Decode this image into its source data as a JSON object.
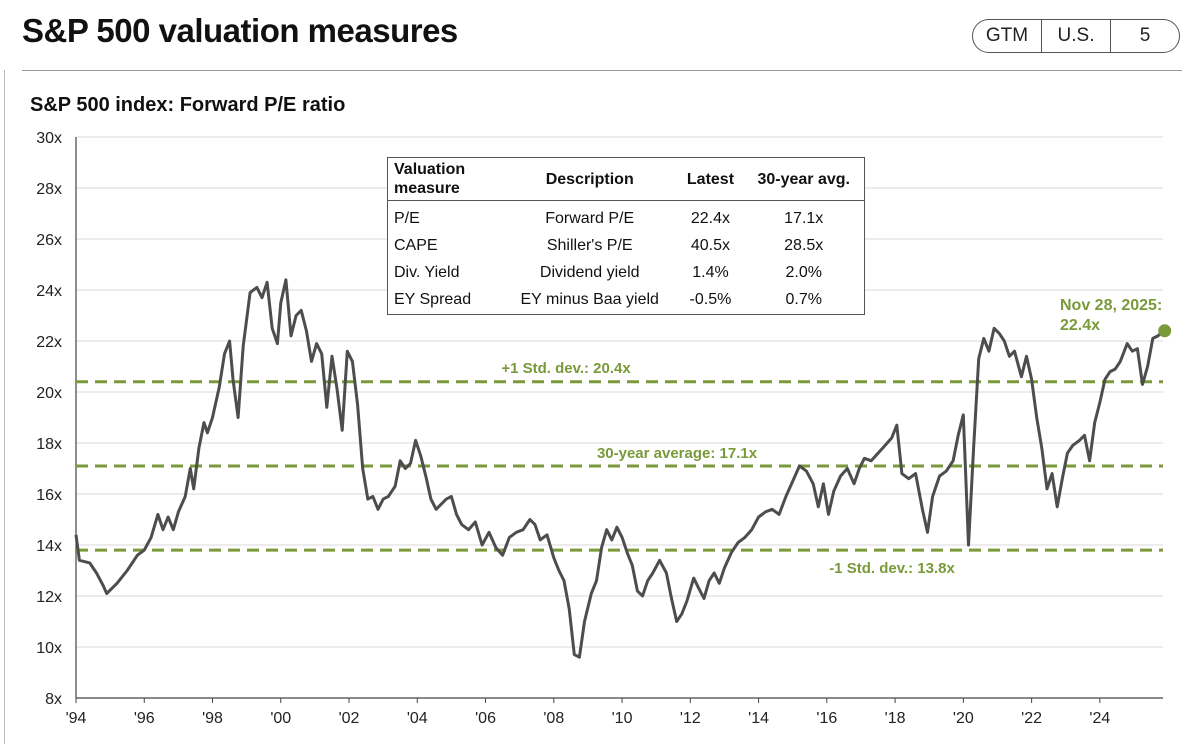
{
  "header": {
    "title": "S&P 500 valuation measures",
    "badge": [
      "GTM",
      "U.S.",
      "5"
    ]
  },
  "colors": {
    "line": "#4d4d4d",
    "accent": "#7a9a3a",
    "grid": "#d9d9d9"
  },
  "chart_data": {
    "type": "line",
    "title": "S&P 500 index: Forward P/E ratio",
    "y_ticks": [
      "8x",
      "10x",
      "12x",
      "14x",
      "16x",
      "18x",
      "20x",
      "22x",
      "24x",
      "26x",
      "28x",
      "30x"
    ],
    "x_ticks": [
      "'94",
      "'96",
      "'98",
      "'00",
      "'02",
      "'04",
      "'06",
      "'08",
      "'10",
      "'12",
      "'14",
      "'16",
      "'18",
      "'20",
      "'22",
      "'24"
    ],
    "xlim": [
      1994,
      2025.85
    ],
    "ylim": [
      8,
      30
    ],
    "reference_lines": [
      {
        "label": "+1 Std. dev.: 20.4x",
        "value": 20.4
      },
      {
        "label": "30-year average: 17.1x",
        "value": 17.1
      },
      {
        "label": "-1 Std. dev.: 13.8x",
        "value": 13.8
      }
    ],
    "latest_annotation": {
      "line1": "Nov 28, 2025:",
      "line2": "22.4x",
      "x": 2025.9,
      "y": 22.4
    },
    "series": [
      {
        "name": "Forward P/E",
        "points": [
          [
            1994.0,
            14.4
          ],
          [
            1994.1,
            13.4
          ],
          [
            1994.4,
            13.3
          ],
          [
            1994.6,
            12.9
          ],
          [
            1994.8,
            12.4
          ],
          [
            1994.9,
            12.1
          ],
          [
            1995.2,
            12.5
          ],
          [
            1995.5,
            13.0
          ],
          [
            1995.8,
            13.6
          ],
          [
            1996.0,
            13.8
          ],
          [
            1996.2,
            14.3
          ],
          [
            1996.4,
            15.2
          ],
          [
            1996.55,
            14.6
          ],
          [
            1996.7,
            15.1
          ],
          [
            1996.85,
            14.6
          ],
          [
            1997.0,
            15.3
          ],
          [
            1997.2,
            15.9
          ],
          [
            1997.35,
            17.0
          ],
          [
            1997.45,
            16.2
          ],
          [
            1997.6,
            17.8
          ],
          [
            1997.75,
            18.8
          ],
          [
            1997.85,
            18.4
          ],
          [
            1998.0,
            19.0
          ],
          [
            1998.2,
            20.2
          ],
          [
            1998.35,
            21.5
          ],
          [
            1998.5,
            22.0
          ],
          [
            1998.6,
            20.5
          ],
          [
            1998.75,
            19.0
          ],
          [
            1998.9,
            21.8
          ],
          [
            1999.1,
            23.9
          ],
          [
            1999.3,
            24.1
          ],
          [
            1999.45,
            23.7
          ],
          [
            1999.6,
            24.3
          ],
          [
            1999.75,
            22.5
          ],
          [
            1999.9,
            21.9
          ],
          [
            2000.0,
            23.5
          ],
          [
            2000.15,
            24.4
          ],
          [
            2000.3,
            22.2
          ],
          [
            2000.45,
            23.0
          ],
          [
            2000.6,
            23.2
          ],
          [
            2000.75,
            22.4
          ],
          [
            2000.9,
            21.2
          ],
          [
            2001.05,
            21.9
          ],
          [
            2001.2,
            21.5
          ],
          [
            2001.35,
            19.4
          ],
          [
            2001.5,
            21.4
          ],
          [
            2001.65,
            20.1
          ],
          [
            2001.8,
            18.5
          ],
          [
            2001.95,
            21.6
          ],
          [
            2002.1,
            21.2
          ],
          [
            2002.25,
            19.5
          ],
          [
            2002.4,
            17.0
          ],
          [
            2002.55,
            15.8
          ],
          [
            2002.7,
            15.9
          ],
          [
            2002.85,
            15.4
          ],
          [
            2003.0,
            15.8
          ],
          [
            2003.15,
            15.9
          ],
          [
            2003.35,
            16.3
          ],
          [
            2003.5,
            17.3
          ],
          [
            2003.65,
            17.0
          ],
          [
            2003.8,
            17.2
          ],
          [
            2003.95,
            18.1
          ],
          [
            2004.1,
            17.5
          ],
          [
            2004.25,
            16.7
          ],
          [
            2004.4,
            15.8
          ],
          [
            2004.55,
            15.4
          ],
          [
            2004.7,
            15.6
          ],
          [
            2004.85,
            15.8
          ],
          [
            2005.0,
            15.9
          ],
          [
            2005.15,
            15.2
          ],
          [
            2005.3,
            14.8
          ],
          [
            2005.5,
            14.6
          ],
          [
            2005.7,
            14.9
          ],
          [
            2005.9,
            14.0
          ],
          [
            2006.1,
            14.5
          ],
          [
            2006.3,
            13.9
          ],
          [
            2006.5,
            13.6
          ],
          [
            2006.7,
            14.3
          ],
          [
            2006.9,
            14.5
          ],
          [
            2007.1,
            14.6
          ],
          [
            2007.3,
            15.0
          ],
          [
            2007.45,
            14.8
          ],
          [
            2007.6,
            14.2
          ],
          [
            2007.8,
            14.4
          ],
          [
            2008.0,
            13.5
          ],
          [
            2008.15,
            13.0
          ],
          [
            2008.3,
            12.6
          ],
          [
            2008.45,
            11.5
          ],
          [
            2008.6,
            9.7
          ],
          [
            2008.75,
            9.6
          ],
          [
            2008.9,
            11.0
          ],
          [
            2009.1,
            12.1
          ],
          [
            2009.25,
            12.6
          ],
          [
            2009.4,
            13.9
          ],
          [
            2009.55,
            14.6
          ],
          [
            2009.7,
            14.2
          ],
          [
            2009.85,
            14.7
          ],
          [
            2010.0,
            14.3
          ],
          [
            2010.15,
            13.7
          ],
          [
            2010.3,
            13.2
          ],
          [
            2010.45,
            12.2
          ],
          [
            2010.6,
            12.0
          ],
          [
            2010.75,
            12.6
          ],
          [
            2010.9,
            12.9
          ],
          [
            2011.1,
            13.4
          ],
          [
            2011.3,
            12.9
          ],
          [
            2011.45,
            11.9
          ],
          [
            2011.6,
            11.0
          ],
          [
            2011.75,
            11.3
          ],
          [
            2011.9,
            11.8
          ],
          [
            2012.1,
            12.7
          ],
          [
            2012.25,
            12.3
          ],
          [
            2012.4,
            11.9
          ],
          [
            2012.55,
            12.6
          ],
          [
            2012.7,
            12.9
          ],
          [
            2012.85,
            12.5
          ],
          [
            2013.0,
            13.1
          ],
          [
            2013.2,
            13.7
          ],
          [
            2013.4,
            14.1
          ],
          [
            2013.6,
            14.3
          ],
          [
            2013.8,
            14.6
          ],
          [
            2014.0,
            15.1
          ],
          [
            2014.2,
            15.3
          ],
          [
            2014.4,
            15.4
          ],
          [
            2014.6,
            15.2
          ],
          [
            2014.8,
            15.9
          ],
          [
            2015.0,
            16.5
          ],
          [
            2015.2,
            17.1
          ],
          [
            2015.4,
            16.9
          ],
          [
            2015.6,
            16.4
          ],
          [
            2015.75,
            15.5
          ],
          [
            2015.9,
            16.4
          ],
          [
            2016.05,
            15.2
          ],
          [
            2016.2,
            16.1
          ],
          [
            2016.4,
            16.7
          ],
          [
            2016.6,
            17.0
          ],
          [
            2016.8,
            16.4
          ],
          [
            2016.95,
            17.0
          ],
          [
            2017.1,
            17.4
          ],
          [
            2017.3,
            17.3
          ],
          [
            2017.5,
            17.6
          ],
          [
            2017.7,
            17.9
          ],
          [
            2017.9,
            18.2
          ],
          [
            2018.05,
            18.7
          ],
          [
            2018.2,
            16.8
          ],
          [
            2018.4,
            16.6
          ],
          [
            2018.6,
            16.8
          ],
          [
            2018.8,
            15.4
          ],
          [
            2018.95,
            14.5
          ],
          [
            2019.1,
            15.9
          ],
          [
            2019.3,
            16.7
          ],
          [
            2019.5,
            16.9
          ],
          [
            2019.7,
            17.3
          ],
          [
            2019.85,
            18.3
          ],
          [
            2020.0,
            19.1
          ],
          [
            2020.15,
            14.0
          ],
          [
            2020.3,
            17.8
          ],
          [
            2020.45,
            21.3
          ],
          [
            2020.6,
            22.1
          ],
          [
            2020.75,
            21.6
          ],
          [
            2020.9,
            22.5
          ],
          [
            2021.05,
            22.3
          ],
          [
            2021.2,
            22.0
          ],
          [
            2021.35,
            21.4
          ],
          [
            2021.5,
            21.6
          ],
          [
            2021.7,
            20.6
          ],
          [
            2021.85,
            21.4
          ],
          [
            2022.0,
            20.5
          ],
          [
            2022.15,
            19.0
          ],
          [
            2022.3,
            17.8
          ],
          [
            2022.45,
            16.2
          ],
          [
            2022.6,
            16.8
          ],
          [
            2022.75,
            15.5
          ],
          [
            2022.9,
            16.6
          ],
          [
            2023.05,
            17.6
          ],
          [
            2023.2,
            17.9
          ],
          [
            2023.4,
            18.1
          ],
          [
            2023.55,
            18.3
          ],
          [
            2023.7,
            17.3
          ],
          [
            2023.85,
            18.8
          ],
          [
            2024.0,
            19.6
          ],
          [
            2024.15,
            20.5
          ],
          [
            2024.3,
            20.8
          ],
          [
            2024.45,
            20.9
          ],
          [
            2024.6,
            21.2
          ],
          [
            2024.8,
            21.9
          ],
          [
            2024.95,
            21.6
          ],
          [
            2025.1,
            21.7
          ],
          [
            2025.25,
            20.3
          ],
          [
            2025.4,
            21.0
          ],
          [
            2025.55,
            22.1
          ],
          [
            2025.7,
            22.2
          ],
          [
            2025.85,
            22.4
          ]
        ]
      }
    ]
  },
  "table": {
    "headers": [
      "Valuation measure",
      "Description",
      "Latest",
      "30-year avg."
    ],
    "rows": [
      [
        "P/E",
        "Forward P/E",
        "22.4x",
        "17.1x"
      ],
      [
        "CAPE",
        "Shiller's P/E",
        "40.5x",
        "28.5x"
      ],
      [
        "Div. Yield",
        "Dividend yield",
        "1.4%",
        "2.0%"
      ],
      [
        "EY Spread",
        "EY minus Baa yield",
        "-0.5%",
        "0.7%"
      ]
    ]
  }
}
